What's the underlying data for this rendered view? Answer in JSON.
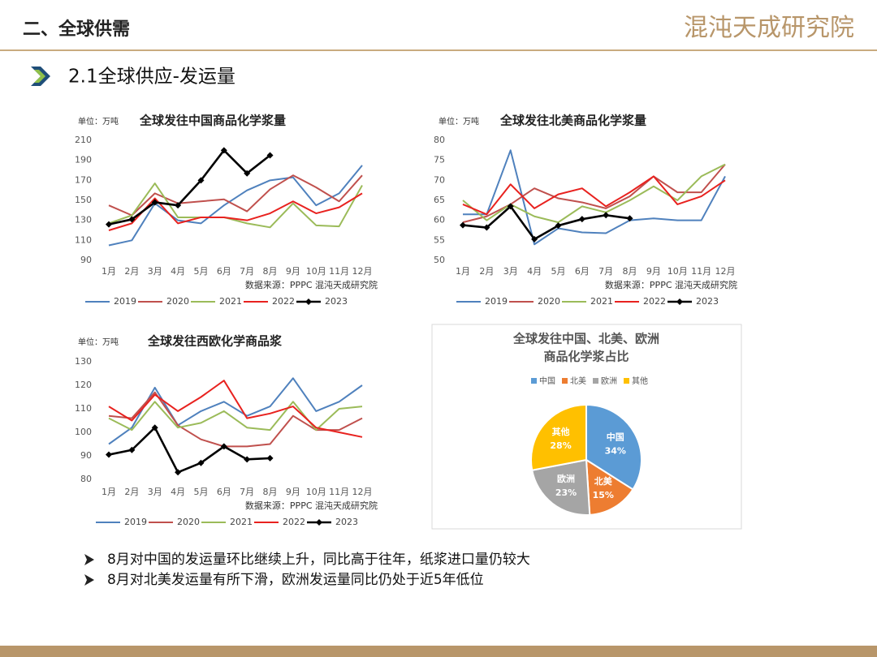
{
  "header": {
    "title": "二、全球供需",
    "logo": "混沌天成研究院"
  },
  "section": {
    "title": "2.1全球供应-发运量"
  },
  "chart_data": [
    {
      "type": "line",
      "title": "全球发往中国商品化学浆量",
      "unit": "单位：万吨",
      "source": "数据来源：PPPC 混沌天成研究院",
      "categories": [
        "1月",
        "2月",
        "3月",
        "4月",
        "5月",
        "6月",
        "7月",
        "8月",
        "9月",
        "10月",
        "11月",
        "12月"
      ],
      "ylim": [
        90,
        210
      ],
      "yticks": [
        90,
        110,
        130,
        150,
        170,
        190,
        210
      ],
      "grid": false,
      "series": [
        {
          "name": "2019",
          "color": "#4f81bd",
          "values": [
            105,
            110,
            147,
            130,
            127,
            145,
            160,
            170,
            173,
            145,
            157,
            185
          ]
        },
        {
          "name": "2020",
          "color": "#c0504d",
          "values": [
            145,
            135,
            157,
            147,
            149,
            151,
            139,
            161,
            175,
            163,
            149,
            175
          ]
        },
        {
          "name": "2021",
          "color": "#9bbb59",
          "values": [
            127,
            135,
            167,
            133,
            133,
            133,
            127,
            123,
            147,
            125,
            124,
            165
          ]
        },
        {
          "name": "2022",
          "color": "#e8221f",
          "values": [
            120,
            127,
            152,
            127,
            133,
            133,
            130,
            137,
            149,
            137,
            143,
            157
          ]
        },
        {
          "name": "2023",
          "color": "#000000",
          "marker": "diamond",
          "values": [
            126,
            131,
            148,
            145,
            170,
            200,
            177,
            195,
            null,
            null,
            null,
            null
          ]
        }
      ]
    },
    {
      "type": "line",
      "title": "全球发往北美商品化学浆量",
      "unit": "单位：万吨",
      "source": "数据来源：PPPC 混沌天成研究院",
      "categories": [
        "1月",
        "2月",
        "3月",
        "4月",
        "5月",
        "6月",
        "7月",
        "8月",
        "9月",
        "10月",
        "11月",
        "12月"
      ],
      "ylim": [
        50,
        80
      ],
      "yticks": [
        50,
        55,
        60,
        65,
        70,
        75,
        80
      ],
      "grid": false,
      "series": [
        {
          "name": "2019",
          "color": "#4f81bd",
          "values": [
            61.5,
            61.5,
            77.5,
            54,
            58,
            57,
            56.8,
            60,
            60.5,
            60,
            60,
            71
          ]
        },
        {
          "name": "2020",
          "color": "#c0504d",
          "values": [
            59.5,
            61,
            64,
            68,
            65.5,
            64.5,
            63,
            66,
            71,
            67,
            67,
            74
          ]
        },
        {
          "name": "2021",
          "color": "#9bbb59",
          "values": [
            65,
            60,
            64,
            61,
            59.5,
            63.5,
            62,
            65,
            68.5,
            65,
            71,
            74
          ]
        },
        {
          "name": "2022",
          "color": "#e8221f",
          "values": [
            64,
            61.5,
            69,
            63,
            66.5,
            68,
            63.5,
            67,
            71,
            64,
            66,
            70
          ]
        },
        {
          "name": "2023",
          "color": "#000000",
          "marker": "diamond",
          "values": [
            58.8,
            58.2,
            63.5,
            55.3,
            58.7,
            60.3,
            61.3,
            60.5,
            null,
            null,
            null,
            null
          ]
        }
      ]
    },
    {
      "type": "line",
      "title": "全球发往西欧化学商品浆",
      "unit": "单位：万吨",
      "source": "数据来源：PPPC 混沌天成研究院",
      "categories": [
        "1月",
        "2月",
        "3月",
        "4月",
        "5月",
        "6月",
        "7月",
        "8月",
        "9月",
        "10月",
        "11月",
        "12月"
      ],
      "ylim": [
        80,
        130
      ],
      "yticks": [
        80,
        90,
        100,
        110,
        120,
        130
      ],
      "grid": false,
      "series": [
        {
          "name": "2019",
          "color": "#4f81bd",
          "values": [
            95,
            102,
            119,
            103,
            109,
            113,
            107,
            111,
            123,
            109,
            113,
            120
          ]
        },
        {
          "name": "2020",
          "color": "#c0504d",
          "values": [
            107,
            106,
            117,
            103,
            97,
            94,
            94,
            95,
            107,
            101,
            101,
            106
          ]
        },
        {
          "name": "2021",
          "color": "#9bbb59",
          "values": [
            106,
            101,
            113,
            102,
            104,
            109,
            102,
            101,
            113,
            101,
            110,
            111
          ]
        },
        {
          "name": "2022",
          "color": "#e8221f",
          "values": [
            111,
            105,
            116,
            109,
            115,
            122,
            106,
            108,
            111,
            102,
            100,
            98
          ]
        },
        {
          "name": "2023",
          "color": "#000000",
          "marker": "diamond",
          "values": [
            90.5,
            92.5,
            102,
            83,
            87,
            94,
            88.5,
            89,
            null,
            null,
            null,
            null
          ]
        }
      ]
    },
    {
      "type": "pie",
      "title": [
        "全球发往中国、北美、欧洲",
        "商品化学浆占比"
      ],
      "categories": [
        "中国",
        "北美",
        "欧洲",
        "其他"
      ],
      "values": [
        34,
        15,
        23,
        28
      ],
      "value_labels": [
        "34%",
        "15%",
        "23%",
        "28%"
      ],
      "colors": [
        "#5b9bd5",
        "#ed7d31",
        "#a5a5a5",
        "#ffc000"
      ]
    }
  ],
  "bullets": [
    "8月对中国的发运量环比继续上升，同比高于往年，纸浆进口量仍较大",
    "8月对北美发运量有所下滑，欧洲发运量同比仍处于近5年低位"
  ]
}
